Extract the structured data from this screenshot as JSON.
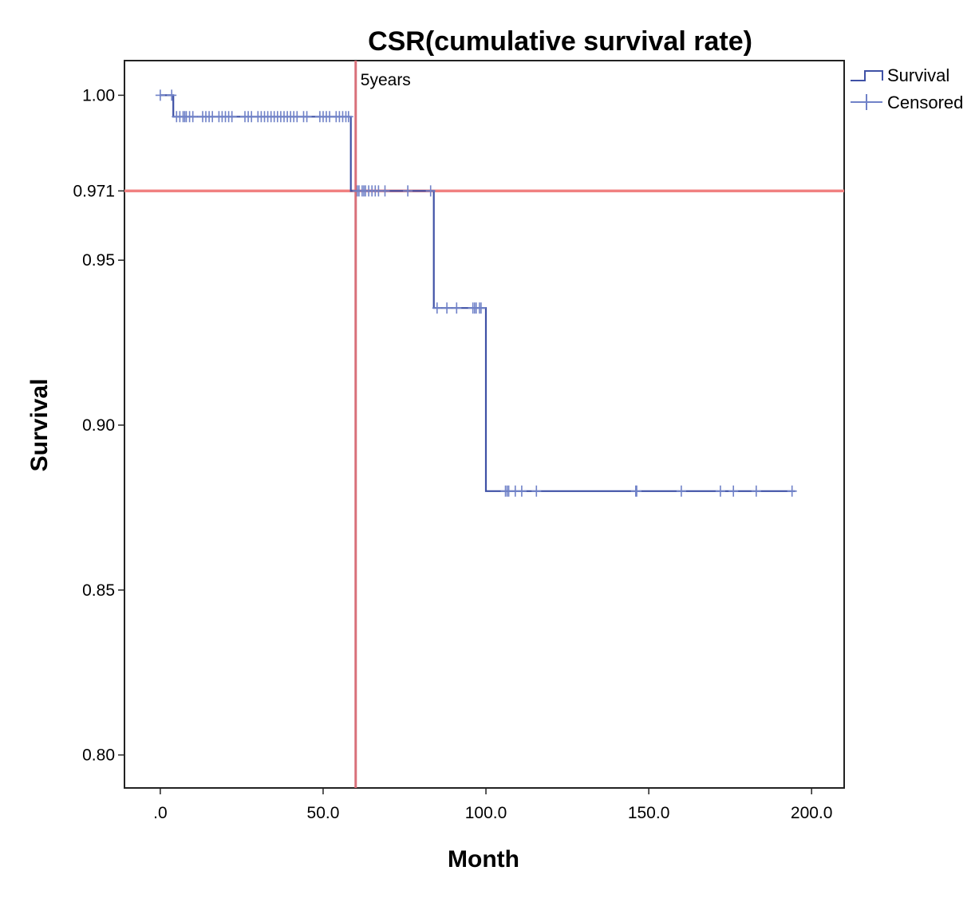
{
  "chart_data": {
    "type": "line",
    "title": "CSR(cumulative survival rate)",
    "xlabel": "Month",
    "ylabel": "Survival",
    "xlim": [
      -11,
      210
    ],
    "ylim": [
      0.79,
      1.0105
    ],
    "x_ticks": [
      {
        "value": 0,
        "label": ".0"
      },
      {
        "value": 50,
        "label": "50.0"
      },
      {
        "value": 100,
        "label": "100.0"
      },
      {
        "value": 150,
        "label": "150.0"
      },
      {
        "value": 200,
        "label": "200.0"
      }
    ],
    "y_ticks": [
      {
        "value": 1.0,
        "label": "1.00"
      },
      {
        "value": 0.971,
        "label": "0.971"
      },
      {
        "value": 0.95,
        "label": "0.95"
      },
      {
        "value": 0.9,
        "label": "0.90"
      },
      {
        "value": 0.85,
        "label": "0.85"
      },
      {
        "value": 0.8,
        "label": "0.80"
      }
    ],
    "survival_steps": [
      [
        0,
        1.0
      ],
      [
        4,
        1.0
      ],
      [
        4,
        0.9935
      ],
      [
        58.5,
        0.9935
      ],
      [
        58.5,
        0.971
      ],
      [
        84,
        0.971
      ],
      [
        84,
        0.9355
      ],
      [
        100,
        0.9355
      ],
      [
        100,
        0.88
      ],
      [
        195,
        0.88
      ]
    ],
    "censored": [
      {
        "y": 1.0,
        "x": [
          0,
          3.5
        ]
      },
      {
        "y": 0.9935,
        "x": [
          5,
          6,
          7,
          7.5,
          8,
          9,
          10,
          13,
          14,
          15,
          16,
          18,
          19,
          20,
          21,
          22,
          26,
          27,
          28,
          30,
          31,
          32,
          33,
          34,
          35,
          36,
          37,
          38,
          39,
          40,
          41,
          42,
          44,
          45,
          49,
          50,
          51,
          52,
          54,
          55,
          56,
          57,
          57.8
        ]
      },
      {
        "y": 0.971,
        "x": [
          60.5,
          61,
          62,
          62.5,
          63,
          64,
          65,
          66,
          67,
          69,
          76,
          83
        ]
      },
      {
        "y": 0.9355,
        "x": [
          85,
          88,
          91,
          96,
          96.5,
          97,
          98,
          98.5
        ]
      },
      {
        "y": 0.88,
        "x": [
          106,
          106.5,
          107,
          109,
          111,
          115.5,
          146,
          146.3,
          160,
          172,
          176,
          183,
          194
        ]
      }
    ],
    "reference_lines": {
      "horizontal": {
        "y": 0.971,
        "color": "#f08080"
      },
      "vertical": {
        "x": 60,
        "label": "5years",
        "color": "#d9707a"
      }
    },
    "series": [
      {
        "name": "Survival",
        "color": "#3f51a6"
      },
      {
        "name": "Censored",
        "color": "#7082c8"
      }
    ],
    "legend_position": "top-right, outside plot",
    "grid": false
  }
}
